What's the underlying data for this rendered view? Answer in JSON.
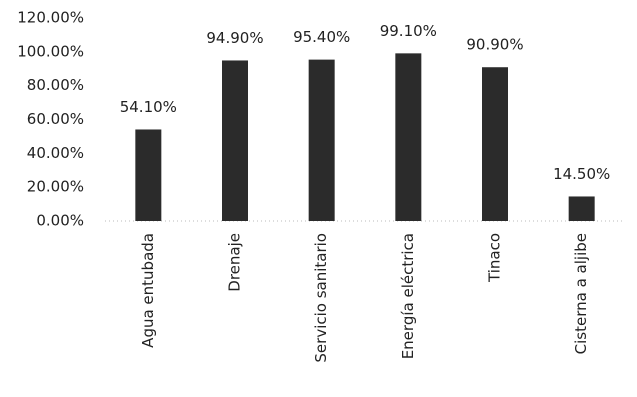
{
  "chart_data": {
    "type": "bar",
    "categories": [
      "Agua entubada",
      "Drenaje",
      "Servicio sanitario",
      "Energía eléctrica",
      "Tinaco",
      "Cisterna a aljibe"
    ],
    "values": [
      54.1,
      94.9,
      95.4,
      99.1,
      90.9,
      14.5
    ],
    "value_labels": [
      "54.10%",
      "94.90%",
      "95.40%",
      "99.10%",
      "90.90%",
      "14.50%"
    ],
    "color": "#2b2b2b",
    "ylim": [
      0,
      120
    ],
    "yticks": [
      {
        "value": 0,
        "label": "0.00%"
      },
      {
        "value": 20,
        "label": "20.00%"
      },
      {
        "value": 40,
        "label": "40.00%"
      },
      {
        "value": 60,
        "label": "60.00%"
      },
      {
        "value": 80,
        "label": "80.00%"
      },
      {
        "value": 100,
        "label": "100.00%"
      },
      {
        "value": 120,
        "label": "120.00%"
      }
    ],
    "grid": false
  }
}
